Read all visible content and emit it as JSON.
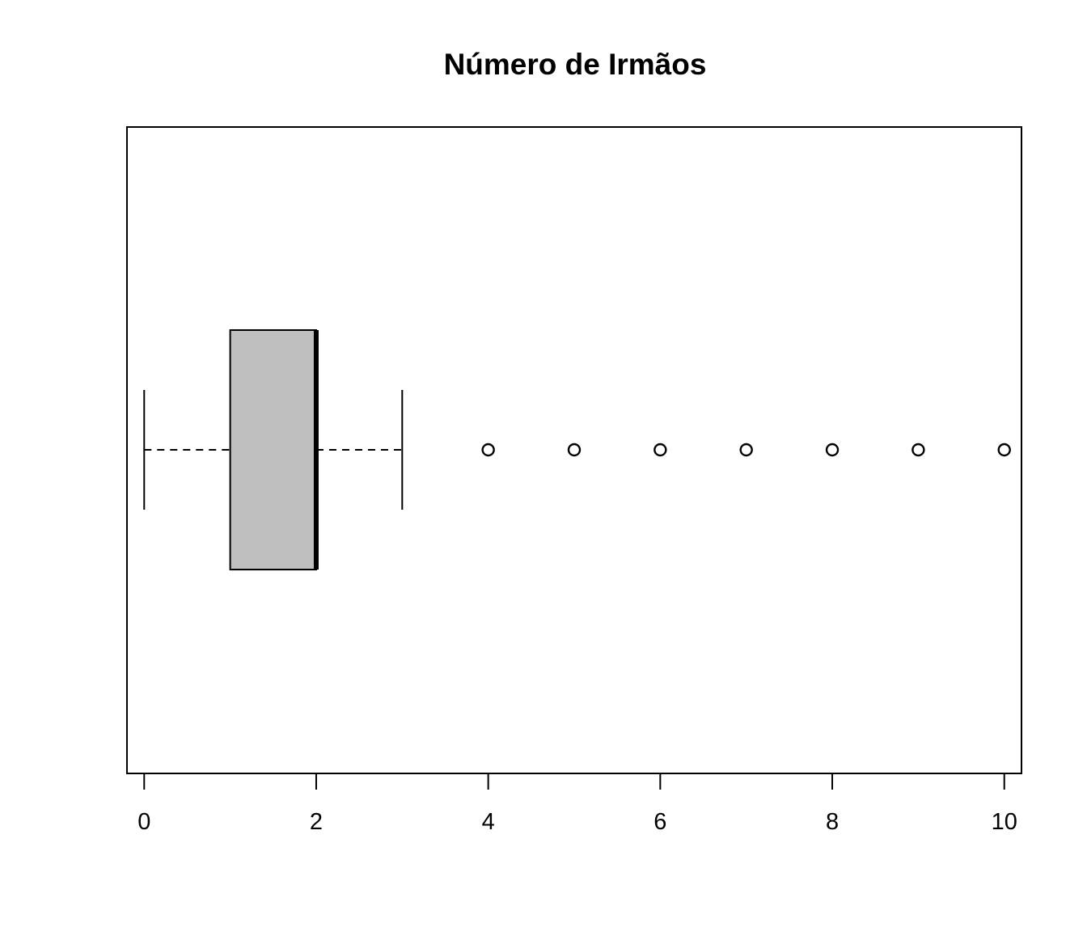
{
  "chart_data": {
    "type": "boxplot",
    "orientation": "horizontal",
    "title": "Número de Irmãos",
    "xlabel": "",
    "ylabel": "",
    "xlim": [
      -0.2,
      10.2
    ],
    "x_ticks": [
      0,
      2,
      4,
      6,
      8,
      10
    ],
    "x_tick_labels": [
      "0",
      "2",
      "4",
      "6",
      "8",
      "10"
    ],
    "grid": false,
    "box": {
      "whisker_low": 0,
      "q1": 1,
      "median": 2,
      "q3": 2,
      "whisker_high": 3,
      "outliers": [
        4,
        5,
        6,
        7,
        8,
        9,
        10
      ],
      "fill": "#bebebe"
    }
  }
}
